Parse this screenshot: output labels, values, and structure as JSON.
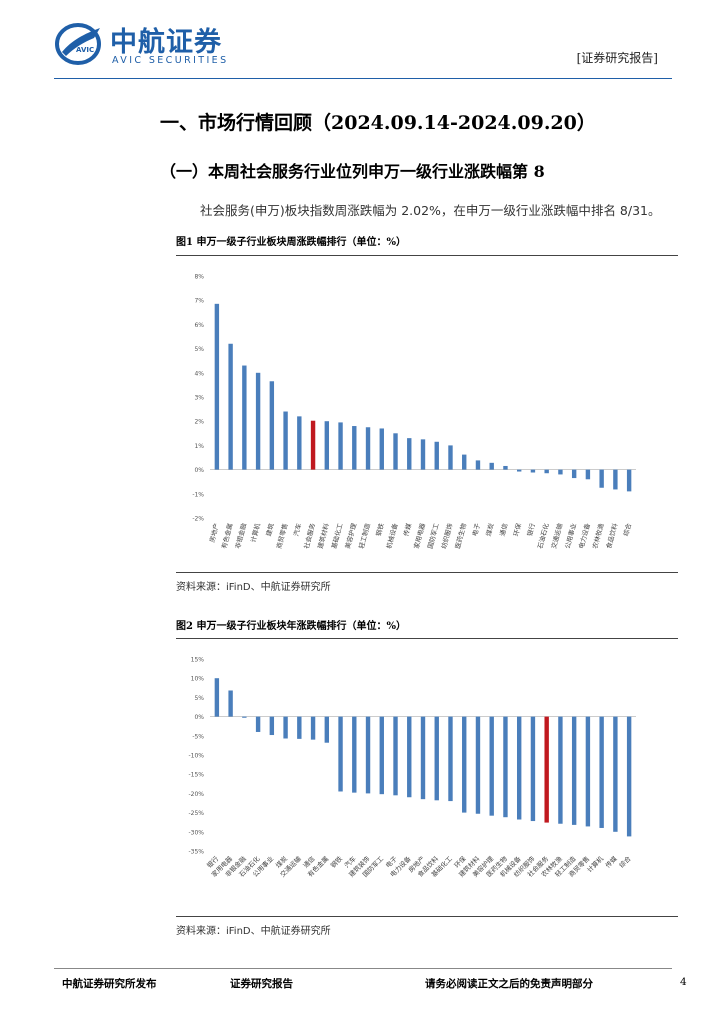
{
  "header": {
    "logo_cn": "中航证券",
    "logo_en": "AVIC SECURITIES",
    "logo_badge": "AVIC",
    "report_tag": "[证券研究报告]"
  },
  "section": {
    "h1": "一、市场行情回顾（2024.09.14-2024.09.20）",
    "h2": "（一）本周社会服务行业位列申万一级行业涨跌幅第 8",
    "paragraph": "社会服务(申万)板块指数周涨跌幅为 2.02%，在申万一级行业涨跌幅中排名 8/31。"
  },
  "figures": [
    {
      "title": "图1  申万一级子行业板块周涨跌幅排行（单位：%）",
      "source": "资料来源：iFinD、中航证券研究所",
      "chart_data": {
        "type": "bar",
        "title": "图1  申万一级子行业板块周涨跌幅排行（单位：%）",
        "ylabel": "",
        "ylim": [
          -2,
          8
        ],
        "yticks": [
          "8%",
          "7%",
          "6%",
          "5%",
          "4%",
          "3%",
          "2%",
          "1%",
          "0%",
          "-1%",
          "-2%"
        ],
        "ytick_values": [
          8,
          7,
          6,
          5,
          4,
          3,
          2,
          1,
          0,
          -1,
          -2
        ],
        "categories": [
          "房地产",
          "有色金属",
          "非银金融",
          "计算机",
          "建筑",
          "商贸零售",
          "汽车",
          "社会服务",
          "建筑材料",
          "基础化工",
          "美容护理",
          "轻工制造",
          "钢铁",
          "机械设备",
          "传媒",
          "家用电器",
          "国防军工",
          "纺织服饰",
          "医药生物",
          "电子",
          "煤炭",
          "通信",
          "环保",
          "银行",
          "石油石化",
          "交通运输",
          "公用事业",
          "电力设备",
          "农林牧渔",
          "食品饮料",
          "综合"
        ],
        "values": [
          6.85,
          5.2,
          4.3,
          4.0,
          3.65,
          2.4,
          2.2,
          2.02,
          2.0,
          1.95,
          1.8,
          1.75,
          1.7,
          1.5,
          1.3,
          1.25,
          1.15,
          1.0,
          0.62,
          0.38,
          0.28,
          0.15,
          -0.08,
          -0.12,
          -0.15,
          -0.2,
          -0.35,
          -0.4,
          -0.75,
          -0.82,
          -0.9
        ],
        "highlight_index": 7,
        "bar_color": "#4a7ebb",
        "highlight_color": "#c0191f"
      }
    },
    {
      "title": "图2  申万一级子行业板块年涨跌幅排行（单位：%）",
      "source": "资料来源：iFinD、中航证券研究所",
      "chart_data": {
        "type": "bar",
        "title": "图2  申万一级子行业板块年涨跌幅排行（单位：%）",
        "ylabel": "",
        "ylim": [
          -35,
          15
        ],
        "yticks": [
          "15%",
          "10%",
          "5%",
          "0%",
          "-5%",
          "-10%",
          "-15%",
          "-20%",
          "-25%",
          "-30%",
          "-35%"
        ],
        "ytick_values": [
          15,
          10,
          5,
          0,
          -5,
          -10,
          -15,
          -20,
          -25,
          -30,
          -35
        ],
        "categories": [
          "银行",
          "家用电器",
          "非银金融",
          "石油石化",
          "公用事业",
          "煤炭",
          "交通运输",
          "通信",
          "有色金属",
          "钢铁",
          "汽车",
          "建筑装饰",
          "国防军工",
          "电子",
          "电力设备",
          "房地产",
          "食品饮料",
          "基础化工",
          "环保",
          "建筑材料",
          "美容护理",
          "医药生物",
          "机械设备",
          "纺织服饰",
          "社会服务",
          "农林牧渔",
          "轻工制造",
          "商贸零售",
          "计算机",
          "传媒",
          "综合"
        ],
        "values": [
          10.0,
          6.8,
          -0.3,
          -4.0,
          -4.8,
          -5.7,
          -5.8,
          -6.0,
          -6.8,
          -19.5,
          -19.8,
          -20.0,
          -20.2,
          -20.5,
          -21.0,
          -21.5,
          -21.8,
          -22.0,
          -25.0,
          -25.3,
          -25.8,
          -26.2,
          -26.8,
          -27.2,
          -27.6,
          -27.9,
          -28.2,
          -28.6,
          -29.0,
          -30.0,
          -31.2
        ],
        "highlight_index": 24,
        "bar_color": "#4a7ebb",
        "highlight_color": "#c0191f"
      }
    }
  ],
  "footer": {
    "left": "中航证券研究所发布",
    "middle": "证券研究报告",
    "right": "请务必阅读正文之后的免责声明部分",
    "page": "4"
  }
}
